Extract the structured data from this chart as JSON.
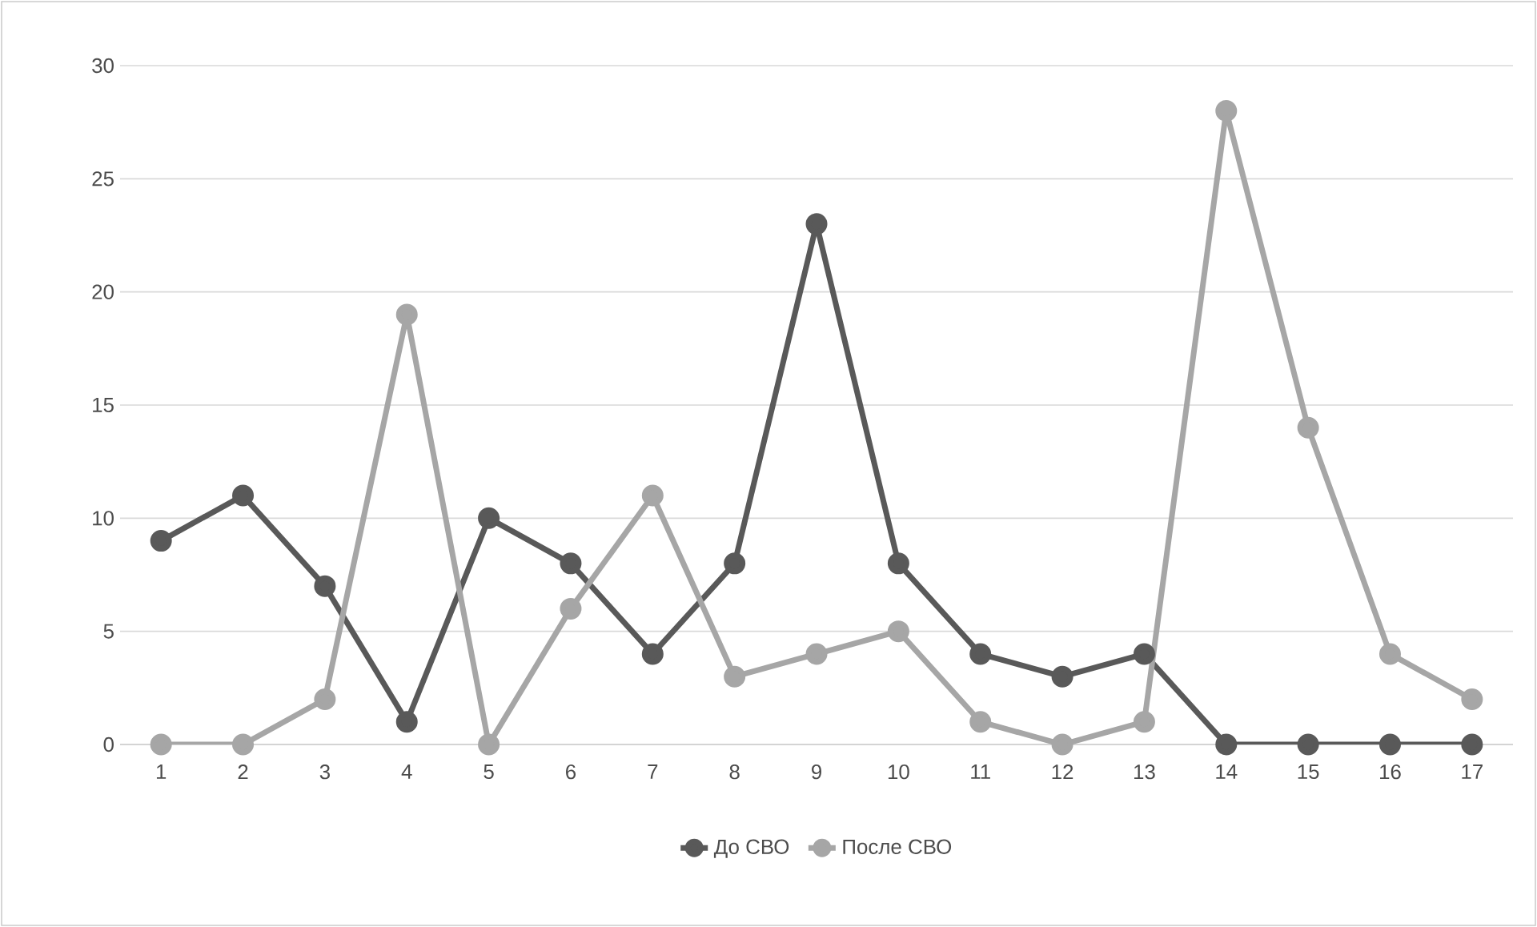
{
  "chart_data": {
    "type": "line",
    "categories": [
      "1",
      "2",
      "3",
      "4",
      "5",
      "6",
      "7",
      "8",
      "9",
      "10",
      "11",
      "12",
      "13",
      "14",
      "15",
      "16",
      "17"
    ],
    "series": [
      {
        "name": "До СВО",
        "color": "#595959",
        "values": [
          9,
          11,
          7,
          1,
          10,
          8,
          4,
          8,
          23,
          8,
          4,
          3,
          4,
          0,
          0,
          0,
          0
        ]
      },
      {
        "name": "После СВО",
        "color": "#a6a6a6",
        "values": [
          0,
          0,
          2,
          19,
          0,
          6,
          11,
          3,
          4,
          5,
          1,
          0,
          1,
          28,
          14,
          4,
          2
        ]
      }
    ],
    "ylim": [
      0,
      30
    ],
    "yticks": [
      0,
      5,
      10,
      15,
      20,
      25,
      30
    ],
    "grid": "y",
    "legend": "bottom",
    "marker": "circle",
    "line_style": "solid"
  }
}
